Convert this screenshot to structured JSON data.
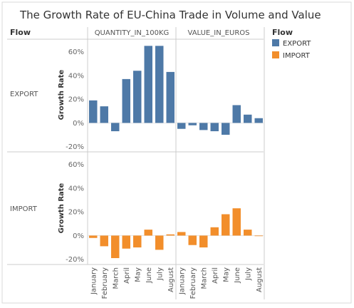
{
  "chart_data": {
    "type": "bar",
    "title": "The Growth Rate of EU-China Trade in Volume and Value",
    "row_dimension_label": "Flow",
    "y_axis_label": "Growth Rate",
    "column_headers": [
      "QUANTITY_IN_100KG",
      "VALUE_IN_EUROS"
    ],
    "row_headers": [
      "EXPORT",
      "IMPORT"
    ],
    "categories": [
      "January",
      "February",
      "March",
      "April",
      "May",
      "June",
      "July",
      "August"
    ],
    "y_ticks": [
      "60%",
      "40%",
      "20%",
      "0%",
      "-20%"
    ],
    "ylim": [
      -0.22,
      0.67
    ],
    "legend": {
      "title": "Flow",
      "items": [
        {
          "label": "EXPORT",
          "color": "#4e79a7"
        },
        {
          "label": "IMPORT",
          "color": "#f28e2b"
        }
      ]
    },
    "panels": [
      {
        "row": "EXPORT",
        "column": "QUANTITY_IN_100KG",
        "color": "#4e79a7",
        "values": [
          0.19,
          0.14,
          -0.07,
          0.37,
          0.44,
          0.65,
          0.65,
          0.43
        ]
      },
      {
        "row": "EXPORT",
        "column": "VALUE_IN_EUROS",
        "color": "#4e79a7",
        "values": [
          -0.05,
          -0.02,
          -0.06,
          -0.07,
          -0.1,
          0.15,
          0.07,
          0.04
        ]
      },
      {
        "row": "IMPORT",
        "column": "QUANTITY_IN_100KG",
        "color": "#f28e2b",
        "values": [
          -0.02,
          -0.09,
          -0.19,
          -0.11,
          -0.1,
          0.05,
          -0.12,
          0.01
        ]
      },
      {
        "row": "IMPORT",
        "column": "VALUE_IN_EUROS",
        "color": "#f28e2b",
        "values": [
          0.03,
          -0.08,
          -0.1,
          0.07,
          0.18,
          0.23,
          0.05,
          0.0
        ]
      }
    ]
  }
}
